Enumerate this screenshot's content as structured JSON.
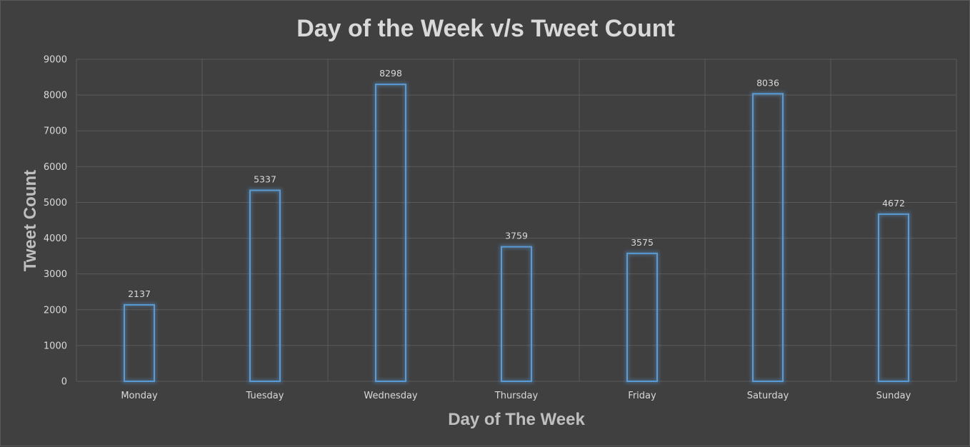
{
  "chart_data": {
    "type": "bar",
    "title": "Day of the Week v/s Tweet Count",
    "xlabel": "Day of The Week",
    "ylabel": "Tweet Count",
    "categories": [
      "Monday",
      "Tuesday",
      "Wednesday",
      "Thursday",
      "Friday",
      "Saturday",
      "Sunday"
    ],
    "values": [
      2137,
      5337,
      8298,
      3759,
      3575,
      8036,
      4672
    ],
    "ylim": [
      0,
      9000
    ],
    "yticks": [
      0,
      1000,
      2000,
      3000,
      4000,
      5000,
      6000,
      7000,
      8000,
      9000
    ],
    "grid": true,
    "data_labels": true,
    "colors": {
      "bar_outline": "#5b9bd5",
      "background": "#404040",
      "grid": "#5a5a5a",
      "text": "#d9d9d9"
    }
  }
}
